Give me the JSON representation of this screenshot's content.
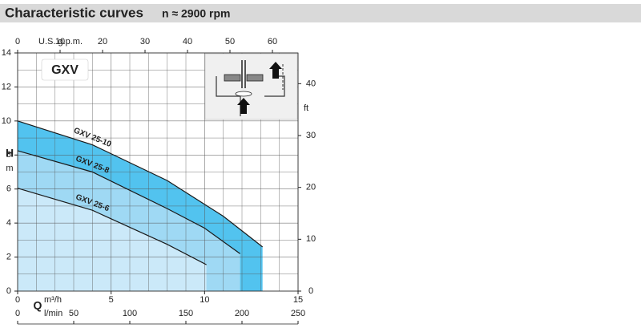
{
  "chart_data": {
    "type": "line",
    "title": "Characteristic curves",
    "subtitle": "n ≈ 2900 rpm",
    "badge": "GXV",
    "x_label": "Q",
    "x_unit": "m³/h",
    "x2_unit": "l/min",
    "x3_unit": "U.S. g.p.m.",
    "y_label": "H",
    "y_unit": "m",
    "y2_unit": "ft",
    "xlim": [
      0,
      15
    ],
    "xticks": [
      0,
      5,
      10,
      15
    ],
    "x2lim": [
      0,
      250
    ],
    "x2ticks": [
      0,
      50,
      100,
      150,
      200,
      250
    ],
    "x3lim": [
      0,
      66.04
    ],
    "x3ticks": [
      0,
      10,
      20,
      30,
      40,
      50,
      60
    ],
    "ylim": [
      0,
      14
    ],
    "yticks": [
      0,
      2,
      4,
      6,
      8,
      10,
      12,
      14
    ],
    "y2lim": [
      0,
      45.93
    ],
    "y2ticks": [
      0,
      10,
      20,
      30,
      40
    ],
    "grid": true,
    "line_color": "#1a1a1a",
    "series": [
      {
        "name": "GXV 25-10",
        "color": "#52c3ef",
        "x": [
          0,
          4,
          8,
          11,
          13.1
        ],
        "values": [
          10,
          8.6,
          6.5,
          4.4,
          2.6
        ]
      },
      {
        "name": "GXV 25-8",
        "color": "#9fd9f4",
        "x": [
          0,
          4,
          8,
          10,
          11.9
        ],
        "values": [
          8.25,
          7.0,
          4.85,
          3.7,
          2.2
        ]
      },
      {
        "name": "GXV 25-6",
        "color": "#cbe9f9",
        "x": [
          0,
          4,
          8,
          10.1
        ],
        "values": [
          6.05,
          4.75,
          2.75,
          1.55
        ]
      }
    ]
  }
}
